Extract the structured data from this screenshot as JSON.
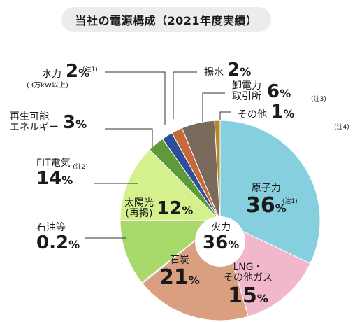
{
  "title": "当社の電源構成（2021年度実績）",
  "pct_sign": "%",
  "chart_data": {
    "type": "pie",
    "title": "当社の電源構成（2021年度実績）",
    "unit": "%",
    "slices": [
      {
        "name": "原子力",
        "value": 36,
        "color": "#86cfdf",
        "note": "(注1)"
      },
      {
        "name": "LNG・その他ガス",
        "value": 15,
        "color": "#f1b7cb"
      },
      {
        "name": "石炭",
        "value": 21,
        "color": "#d99f80"
      },
      {
        "name": "石油等",
        "value": 0.2,
        "color": "#8fd2e2"
      },
      {
        "name": "太陽光(再掲)",
        "value": 12,
        "color": "#a9d96b"
      },
      {
        "name": "FIT電気",
        "value": 14,
        "color": "#d4f18e",
        "note": "(注2)"
      },
      {
        "name": "再生可能エネルギー",
        "value": 3,
        "color": "#5e9a3a"
      },
      {
        "name": "水力",
        "value": 2,
        "color": "#2e4e9a",
        "note": "(注1)",
        "sublabel": "(3万kW以上)"
      },
      {
        "name": "揚水",
        "value": 2,
        "color": "#c76a3a"
      },
      {
        "name": "卸電力取引所",
        "value": 6,
        "color": "#7a6a5c",
        "note": "(注3)"
      },
      {
        "name": "その他",
        "value": 1,
        "color": "#b6882e",
        "note": "(注4)"
      }
    ],
    "group": {
      "name": "火力",
      "value": 36
    }
  },
  "labels": {
    "nuclear": {
      "name": "原子力",
      "value": "36",
      "note": "(注1)"
    },
    "lng": {
      "line1": "LNG・",
      "line2": "その他ガス",
      "value": "15"
    },
    "coal": {
      "name": "石炭",
      "value": "21"
    },
    "thermal": {
      "name": "火力",
      "value": "36"
    },
    "oil": {
      "name": "石油等",
      "value": "0.2"
    },
    "solar": {
      "line1": "太陽光",
      "line2": "(再掲)",
      "value": "12"
    },
    "fit": {
      "name": "FIT電気",
      "value": "14",
      "note": "(注2)"
    },
    "renew": {
      "line1": "再生可能",
      "line2": "エネルギー",
      "value": "3"
    },
    "hydro": {
      "name": "水力",
      "value": "2",
      "note": "(注1)",
      "sub": "(3万kW以上)"
    },
    "pumped": {
      "name": "揚水",
      "value": "2"
    },
    "exchange": {
      "line1": "卸電力",
      "line2": "取引所",
      "value": "6",
      "note": "(注3)"
    },
    "other": {
      "name": "その他",
      "value": "1",
      "note": "(注4)"
    }
  }
}
